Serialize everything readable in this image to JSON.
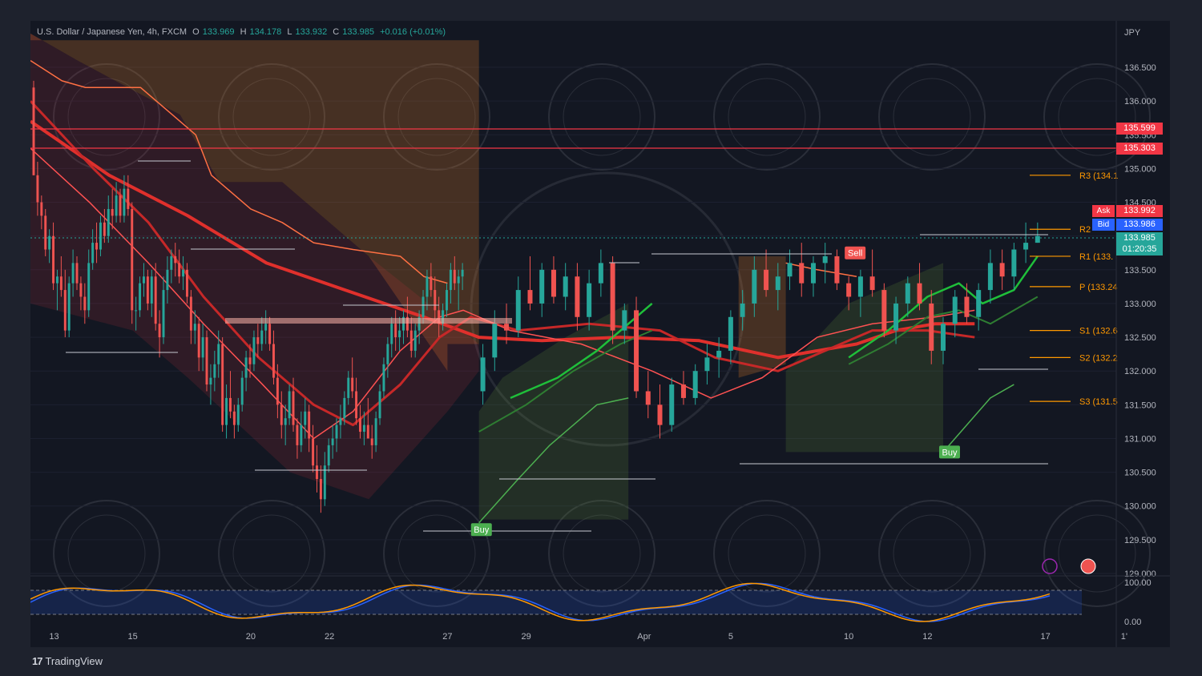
{
  "header": {
    "symbol": "U.S. Dollar / Japanese Yen, 4h, FXCM",
    "o_label": "O",
    "o_value": "133.969",
    "h_label": "H",
    "h_value": "134.178",
    "l_label": "L",
    "l_value": "133.932",
    "c_label": "C",
    "c_value": "133.985",
    "change": "+0.016 (+0.01%)"
  },
  "axis_unit": "JPY",
  "price_labels": {
    "level1": "135.599",
    "level2": "135.303",
    "ask_label": "Ask",
    "ask": "133.992",
    "bid_label": "Bid",
    "bid": "133.986",
    "last": "133.985",
    "countdown": "01:20:35"
  },
  "pivots": [
    {
      "label": "R3 (134.1",
      "value": 134.9
    },
    {
      "label": "R2",
      "value": 134.1
    },
    {
      "label": "R1 (133.",
      "value": 133.7
    },
    {
      "label": "P (133.24",
      "value": 133.25
    },
    {
      "label": "S1 (132.6",
      "value": 132.6
    },
    {
      "label": "S2 (132.2",
      "value": 132.2
    },
    {
      "label": "S3 (131.5",
      "value": 131.55
    }
  ],
  "signals": [
    {
      "text": "Sell",
      "x": 20.8,
      "y": 133.75,
      "color": "#f05350"
    },
    {
      "text": "Buy",
      "x": 23.2,
      "y": 130.8,
      "color": "#4caf50"
    },
    {
      "text": "Buy",
      "x": 11.3,
      "y": 129.65,
      "color": "#4caf50"
    }
  ],
  "oscillator": {
    "upper_label": "100.00",
    "lower_label": "0.00"
  },
  "footer": {
    "brand": "TradingView"
  },
  "colors": {
    "bull": "#26a69a",
    "bear": "#ef5350",
    "background": "#131722",
    "level": "#f23645"
  },
  "chart_data": {
    "type": "candlestick",
    "title": "U.S. Dollar / Japanese Yen, 4h, FXCM",
    "ylabel": "JPY",
    "ylim": [
      129.0,
      137.0
    ],
    "y_ticks": [
      "136.500",
      "136.000",
      "135.500",
      "135.000",
      "134.500",
      "134.000",
      "133.500",
      "133.000",
      "132.500",
      "132.000",
      "131.500",
      "131.000",
      "130.500",
      "130.000",
      "129.500",
      "129.000"
    ],
    "x_ticks": [
      {
        "label": "13",
        "x": 0.6
      },
      {
        "label": "15",
        "x": 2.6
      },
      {
        "label": "20",
        "x": 5.6
      },
      {
        "label": "22",
        "x": 7.6
      },
      {
        "label": "27",
        "x": 10.6
      },
      {
        "label": "29",
        "x": 12.6
      },
      {
        "label": "Apr",
        "x": 15.6
      },
      {
        "label": "5",
        "x": 17.8
      },
      {
        "label": "10",
        "x": 20.8
      },
      {
        "label": "12",
        "x": 22.8
      },
      {
        "label": "17",
        "x": 25.8
      },
      {
        "label": "1'",
        "x": 27.8
      }
    ],
    "candles": [
      [
        0.0,
        136.2,
        136.3,
        134.9,
        134.9
      ],
      [
        0.1,
        134.9,
        135.1,
        134.3,
        134.5
      ],
      [
        0.2,
        134.5,
        134.6,
        134.1,
        134.3
      ],
      [
        0.3,
        134.3,
        134.4,
        133.7,
        133.8
      ],
      [
        0.4,
        133.8,
        134.1,
        133.6,
        134.0
      ],
      [
        0.5,
        134.0,
        134.2,
        133.2,
        133.3
      ],
      [
        0.6,
        133.3,
        133.5,
        132.9,
        133.4
      ],
      [
        0.7,
        133.4,
        133.7,
        133.1,
        133.2
      ],
      [
        0.8,
        133.2,
        133.5,
        132.5,
        132.6
      ],
      [
        0.9,
        132.6,
        133.4,
        132.5,
        133.3
      ],
      [
        1.0,
        133.3,
        133.8,
        133.1,
        133.6
      ],
      [
        1.1,
        133.6,
        133.7,
        133.2,
        133.3
      ],
      [
        1.2,
        133.3,
        133.4,
        132.9,
        133.1
      ],
      [
        1.3,
        133.1,
        133.3,
        132.7,
        132.9
      ],
      [
        1.4,
        132.9,
        133.8,
        132.8,
        133.6
      ],
      [
        1.5,
        133.6,
        134.1,
        133.5,
        133.9
      ],
      [
        1.6,
        133.9,
        134.2,
        133.6,
        133.8
      ],
      [
        1.7,
        133.8,
        134.3,
        133.7,
        134.2
      ],
      [
        1.8,
        134.2,
        134.4,
        133.9,
        134.0
      ],
      [
        1.9,
        134.0,
        134.6,
        133.9,
        134.4
      ],
      [
        2.0,
        134.4,
        134.7,
        134.1,
        134.3
      ],
      [
        2.1,
        134.3,
        134.8,
        134.2,
        134.6
      ],
      [
        2.2,
        134.6,
        134.7,
        134.2,
        134.3
      ],
      [
        2.3,
        134.3,
        134.9,
        134.2,
        134.7
      ],
      [
        2.4,
        134.7,
        134.9,
        134.3,
        134.4
      ],
      [
        2.5,
        134.4,
        134.5,
        132.7,
        132.9
      ],
      [
        2.6,
        132.9,
        133.1,
        132.6,
        132.9
      ],
      [
        2.7,
        132.9,
        133.4,
        132.8,
        133.3
      ],
      [
        2.8,
        133.3,
        133.6,
        133.1,
        133.4
      ],
      [
        2.9,
        133.4,
        133.5,
        132.9,
        133.0
      ],
      [
        3.0,
        133.0,
        133.5,
        132.8,
        133.4
      ],
      [
        3.1,
        133.4,
        133.6,
        132.6,
        132.7
      ],
      [
        3.2,
        132.7,
        132.9,
        132.2,
        132.5
      ],
      [
        3.3,
        132.5,
        133.4,
        132.4,
        133.2
      ],
      [
        3.4,
        133.2,
        133.7,
        133.0,
        133.5
      ],
      [
        3.5,
        133.5,
        133.8,
        133.3,
        133.7
      ],
      [
        3.6,
        133.7,
        133.9,
        133.4,
        133.6
      ],
      [
        3.7,
        133.6,
        133.8,
        133.3,
        133.4
      ],
      [
        3.8,
        133.4,
        133.7,
        133.2,
        133.5
      ],
      [
        3.9,
        133.5,
        133.6,
        133.0,
        133.1
      ],
      [
        4.0,
        133.1,
        133.2,
        132.4,
        132.6
      ],
      [
        4.1,
        132.6,
        132.9,
        132.4,
        132.7
      ],
      [
        4.2,
        132.7,
        132.8,
        132.0,
        132.2
      ],
      [
        4.3,
        132.2,
        132.7,
        132.0,
        132.5
      ],
      [
        4.4,
        132.5,
        132.6,
        131.7,
        131.8
      ],
      [
        4.5,
        131.8,
        132.1,
        131.5,
        131.9
      ],
      [
        4.6,
        131.9,
        132.3,
        131.7,
        132.1
      ],
      [
        4.7,
        132.1,
        132.6,
        131.9,
        132.4
      ],
      [
        4.8,
        132.4,
        132.5,
        131.1,
        131.2
      ],
      [
        4.9,
        131.2,
        131.8,
        131.0,
        131.6
      ],
      [
        5.0,
        131.6,
        132.0,
        131.3,
        131.4
      ],
      [
        5.1,
        131.4,
        131.5,
        131.0,
        131.2
      ],
      [
        5.2,
        131.2,
        131.6,
        131.1,
        131.5
      ],
      [
        5.3,
        131.5,
        132.0,
        131.4,
        131.9
      ],
      [
        5.4,
        131.9,
        132.3,
        131.7,
        132.2
      ],
      [
        5.5,
        132.2,
        132.4,
        131.9,
        132.1
      ],
      [
        5.6,
        132.1,
        132.6,
        132.0,
        132.5
      ],
      [
        5.7,
        132.5,
        132.7,
        132.2,
        132.4
      ],
      [
        5.8,
        132.4,
        132.8,
        132.3,
        132.6
      ],
      [
        5.9,
        132.6,
        132.9,
        132.4,
        132.7
      ],
      [
        6.0,
        132.7,
        132.8,
        132.3,
        132.4
      ],
      [
        6.1,
        132.4,
        132.6,
        131.8,
        131.9
      ],
      [
        6.2,
        131.9,
        132.1,
        131.3,
        131.5
      ],
      [
        6.3,
        131.5,
        131.7,
        131.0,
        131.2
      ],
      [
        6.4,
        131.2,
        131.5,
        130.9,
        131.3
      ],
      [
        6.5,
        131.3,
        131.8,
        131.2,
        131.7
      ],
      [
        6.6,
        131.7,
        131.9,
        131.1,
        131.2
      ],
      [
        6.7,
        131.2,
        131.3,
        130.7,
        130.9
      ],
      [
        6.8,
        130.9,
        131.4,
        130.8,
        131.2
      ],
      [
        6.9,
        131.2,
        131.6,
        131.0,
        131.4
      ],
      [
        7.0,
        131.4,
        131.5,
        130.8,
        131.0
      ],
      [
        7.1,
        131.0,
        131.2,
        130.5,
        130.6
      ],
      [
        7.2,
        130.6,
        130.9,
        130.2,
        130.4
      ],
      [
        7.3,
        130.4,
        130.6,
        129.9,
        130.1
      ],
      [
        7.4,
        130.1,
        130.8,
        130.0,
        130.6
      ],
      [
        7.5,
        130.6,
        131.0,
        130.5,
        130.9
      ],
      [
        7.6,
        130.9,
        131.2,
        130.7,
        131.0
      ],
      [
        7.7,
        131.0,
        131.3,
        130.8,
        131.2
      ],
      [
        7.8,
        131.2,
        131.5,
        131.0,
        131.3
      ],
      [
        7.9,
        131.3,
        131.7,
        131.2,
        131.6
      ],
      [
        8.0,
        131.6,
        132.0,
        131.5,
        131.9
      ],
      [
        8.1,
        131.9,
        132.2,
        131.6,
        131.7
      ],
      [
        8.2,
        131.7,
        131.9,
        131.2,
        131.3
      ],
      [
        8.3,
        131.3,
        131.5,
        131.0,
        131.1
      ],
      [
        8.4,
        131.1,
        131.4,
        130.9,
        131.2
      ],
      [
        8.5,
        131.2,
        131.6,
        131.0,
        131.0
      ],
      [
        8.6,
        131.0,
        131.2,
        130.7,
        130.9
      ],
      [
        8.7,
        130.9,
        131.4,
        130.8,
        131.3
      ],
      [
        8.8,
        131.3,
        131.8,
        131.2,
        131.7
      ],
      [
        8.9,
        131.7,
        132.2,
        131.6,
        132.1
      ],
      [
        9.0,
        132.1,
        132.5,
        131.9,
        132.4
      ],
      [
        9.1,
        132.4,
        132.8,
        132.2,
        132.7
      ],
      [
        9.2,
        132.7,
        132.9,
        132.3,
        132.5
      ],
      [
        9.3,
        132.5,
        132.8,
        132.3,
        132.6
      ],
      [
        9.4,
        132.6,
        132.9,
        132.4,
        132.8
      ],
      [
        9.5,
        132.8,
        133.1,
        132.5,
        132.6
      ],
      [
        9.6,
        132.6,
        132.8,
        132.2,
        132.3
      ],
      [
        9.7,
        132.3,
        132.7,
        132.2,
        132.6
      ],
      [
        9.8,
        132.6,
        132.9,
        132.4,
        132.8
      ],
      [
        9.9,
        132.8,
        133.2,
        132.7,
        133.1
      ],
      [
        10.0,
        133.1,
        133.5,
        132.9,
        133.4
      ],
      [
        10.1,
        133.4,
        133.6,
        133.1,
        133.2
      ],
      [
        10.2,
        133.2,
        133.4,
        132.7,
        132.9
      ],
      [
        10.3,
        132.9,
        133.1,
        132.5,
        132.7
      ],
      [
        10.4,
        132.7,
        133.0,
        132.6,
        132.9
      ],
      [
        10.5,
        132.9,
        133.3,
        132.8,
        133.2
      ],
      [
        10.6,
        133.2,
        133.6,
        133.0,
        133.5
      ],
      [
        10.7,
        133.5,
        133.7,
        133.2,
        133.3
      ],
      [
        10.8,
        133.3,
        133.5,
        132.9,
        133.4
      ],
      [
        10.9,
        133.4,
        133.6,
        133.2,
        133.5
      ]
    ]
  }
}
